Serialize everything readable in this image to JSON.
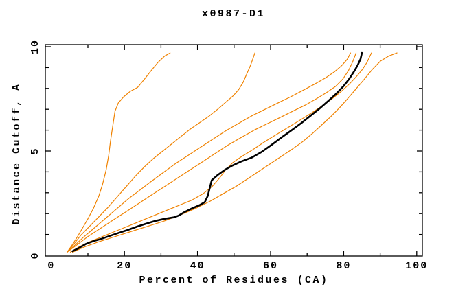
{
  "window": {
    "background": "#ffffff"
  },
  "chart_data": {
    "type": "line",
    "title": "x0987-D1",
    "xlabel": "Percent of Residues (CA)",
    "ylabel": "Distance Cutoff, A",
    "xlim": [
      -1.7,
      101.6
    ],
    "ylim": [
      -0.05,
      10.15
    ],
    "grid": false,
    "legend": "none",
    "colors": {
      "model_line": "#000000",
      "reference_lines": "#f08200"
    },
    "x_axis": {
      "ticks": [
        {
          "v": 0,
          "label": "0",
          "mark": false
        },
        {
          "v": 10
        },
        {
          "v": 20,
          "label": "20",
          "major": true
        },
        {
          "v": 30
        },
        {
          "v": 40,
          "label": "40",
          "major": true
        },
        {
          "v": 50
        },
        {
          "v": 60,
          "label": "60",
          "major": true
        },
        {
          "v": 70
        },
        {
          "v": 80,
          "label": "80",
          "major": true
        },
        {
          "v": 90
        },
        {
          "v": 100,
          "label": "100",
          "major": true
        }
      ]
    },
    "y_axis": {
      "ticks": [
        {
          "v": 0,
          "label": "0",
          "mark": false
        },
        {
          "v": 1
        },
        {
          "v": 2
        },
        {
          "v": 3
        },
        {
          "v": 4
        },
        {
          "v": 5,
          "label": "5",
          "major": true
        },
        {
          "v": 6
        },
        {
          "v": 7
        },
        {
          "v": 8
        },
        {
          "v": 9
        },
        {
          "v": 10,
          "label": "10",
          "major": true
        }
      ]
    },
    "series": [
      {
        "name": "orange-1-steep",
        "color": "#f08200",
        "width": 1.2,
        "points": [
          [
            4.3,
            0.15
          ],
          [
            5.5,
            0.45
          ],
          [
            7,
            0.85
          ],
          [
            8.5,
            1.3
          ],
          [
            10,
            1.75
          ],
          [
            11.5,
            2.25
          ],
          [
            13,
            2.85
          ],
          [
            14,
            3.4
          ],
          [
            15,
            4.1
          ],
          [
            15.7,
            4.8
          ],
          [
            16.2,
            5.5
          ],
          [
            16.8,
            6.2
          ],
          [
            17.4,
            6.9
          ],
          [
            18.3,
            7.3
          ],
          [
            19.8,
            7.6
          ],
          [
            21.5,
            7.85
          ],
          [
            23.6,
            8.05
          ],
          [
            25.5,
            8.45
          ],
          [
            27.3,
            8.85
          ],
          [
            29.2,
            9.25
          ],
          [
            31,
            9.55
          ],
          [
            32.5,
            9.7
          ]
        ]
      },
      {
        "name": "orange-2",
        "color": "#f08200",
        "width": 1.2,
        "points": [
          [
            4.3,
            0.15
          ],
          [
            6,
            0.5
          ],
          [
            8,
            0.95
          ],
          [
            10.5,
            1.4
          ],
          [
            13,
            1.85
          ],
          [
            15.5,
            2.3
          ],
          [
            18,
            2.8
          ],
          [
            20.5,
            3.3
          ],
          [
            23,
            3.8
          ],
          [
            25.5,
            4.25
          ],
          [
            28,
            4.65
          ],
          [
            30.5,
            5.0
          ],
          [
            33,
            5.35
          ],
          [
            35.5,
            5.7
          ],
          [
            38,
            6.05
          ],
          [
            40.5,
            6.35
          ],
          [
            43,
            6.65
          ],
          [
            45.5,
            7.0
          ],
          [
            47.8,
            7.35
          ],
          [
            49.8,
            7.65
          ],
          [
            51.3,
            7.95
          ],
          [
            52.5,
            8.3
          ],
          [
            53.5,
            8.7
          ],
          [
            54.5,
            9.1
          ],
          [
            55.2,
            9.45
          ],
          [
            55.7,
            9.7
          ]
        ]
      },
      {
        "name": "orange-3",
        "color": "#f08200",
        "width": 1.2,
        "points": [
          [
            4.3,
            0.15
          ],
          [
            6.5,
            0.5
          ],
          [
            9,
            0.9
          ],
          [
            12,
            1.35
          ],
          [
            15,
            1.8
          ],
          [
            18,
            2.25
          ],
          [
            21,
            2.7
          ],
          [
            24,
            3.1
          ],
          [
            27,
            3.5
          ],
          [
            30.5,
            3.95
          ],
          [
            34,
            4.4
          ],
          [
            37.5,
            4.8
          ],
          [
            41,
            5.2
          ],
          [
            44.5,
            5.6
          ],
          [
            48,
            6.0
          ],
          [
            51.5,
            6.35
          ],
          [
            55,
            6.7
          ],
          [
            58.5,
            7.0
          ],
          [
            62,
            7.3
          ],
          [
            65.5,
            7.6
          ],
          [
            68.8,
            7.9
          ],
          [
            72,
            8.2
          ],
          [
            75,
            8.5
          ],
          [
            77.5,
            8.8
          ],
          [
            79.5,
            9.1
          ],
          [
            81,
            9.4
          ],
          [
            81.9,
            9.7
          ]
        ]
      },
      {
        "name": "orange-4-crosses-black",
        "color": "#f08200",
        "width": 1.2,
        "points": [
          [
            4.3,
            0.15
          ],
          [
            7,
            0.5
          ],
          [
            10,
            0.9
          ],
          [
            13.5,
            1.3
          ],
          [
            17,
            1.7
          ],
          [
            20.5,
            2.1
          ],
          [
            24,
            2.5
          ],
          [
            27.5,
            2.9
          ],
          [
            31,
            3.3
          ],
          [
            34.5,
            3.7
          ],
          [
            38,
            4.1
          ],
          [
            41.5,
            4.5
          ],
          [
            45,
            4.9
          ],
          [
            48.5,
            5.3
          ],
          [
            52,
            5.65
          ],
          [
            55.5,
            6.0
          ],
          [
            59,
            6.3
          ],
          [
            62.5,
            6.6
          ],
          [
            66,
            6.9
          ],
          [
            69.5,
            7.2
          ],
          [
            72.5,
            7.5
          ],
          [
            75.3,
            7.8
          ],
          [
            77.8,
            8.1
          ],
          [
            79.8,
            8.45
          ],
          [
            81.3,
            8.85
          ],
          [
            82.4,
            9.25
          ],
          [
            83.4,
            9.7
          ]
        ]
      },
      {
        "name": "orange-5-hugs-black",
        "color": "#f08200",
        "width": 1.2,
        "points": [
          [
            5.2,
            0.15
          ],
          [
            7.5,
            0.4
          ],
          [
            10.5,
            0.65
          ],
          [
            14,
            0.9
          ],
          [
            17.5,
            1.15
          ],
          [
            21,
            1.4
          ],
          [
            24.5,
            1.65
          ],
          [
            28,
            1.9
          ],
          [
            31.5,
            2.15
          ],
          [
            35,
            2.4
          ],
          [
            38.5,
            2.65
          ],
          [
            41.5,
            2.95
          ],
          [
            44,
            3.3
          ],
          [
            46,
            3.7
          ],
          [
            47.7,
            4.1
          ],
          [
            49.7,
            4.45
          ],
          [
            52.2,
            4.75
          ],
          [
            55,
            5.05
          ],
          [
            58,
            5.4
          ],
          [
            61.2,
            5.75
          ],
          [
            64.5,
            6.1
          ],
          [
            67.8,
            6.45
          ],
          [
            71,
            6.8
          ],
          [
            74,
            7.15
          ],
          [
            76.8,
            7.5
          ],
          [
            79.3,
            7.85
          ],
          [
            81.5,
            8.2
          ],
          [
            83.4,
            8.55
          ],
          [
            85.1,
            8.9
          ],
          [
            86.4,
            9.25
          ],
          [
            87.6,
            9.7
          ]
        ]
      },
      {
        "name": "orange-6-shallow-right",
        "color": "#f08200",
        "width": 1.2,
        "points": [
          [
            5.8,
            0.15
          ],
          [
            9,
            0.4
          ],
          [
            13,
            0.65
          ],
          [
            17.5,
            0.9
          ],
          [
            22,
            1.15
          ],
          [
            26.5,
            1.4
          ],
          [
            31,
            1.65
          ],
          [
            35.5,
            1.95
          ],
          [
            39.5,
            2.25
          ],
          [
            43.5,
            2.6
          ],
          [
            47,
            2.95
          ],
          [
            50.5,
            3.3
          ],
          [
            54,
            3.7
          ],
          [
            57,
            4.05
          ],
          [
            60,
            4.4
          ],
          [
            63,
            4.75
          ],
          [
            66,
            5.1
          ],
          [
            68.8,
            5.45
          ],
          [
            71.5,
            5.85
          ],
          [
            74,
            6.25
          ],
          [
            76.5,
            6.65
          ],
          [
            79,
            7.1
          ],
          [
            81.3,
            7.55
          ],
          [
            83.5,
            8.0
          ],
          [
            85.7,
            8.45
          ],
          [
            87.8,
            8.9
          ],
          [
            90,
            9.3
          ],
          [
            92.3,
            9.55
          ],
          [
            94.6,
            9.7
          ]
        ]
      },
      {
        "name": "black-model",
        "color": "#000000",
        "width": 2.6,
        "points": [
          [
            5.8,
            0.2
          ],
          [
            7.5,
            0.35
          ],
          [
            9.5,
            0.55
          ],
          [
            11.5,
            0.68
          ],
          [
            13.5,
            0.78
          ],
          [
            16,
            0.93
          ],
          [
            18.5,
            1.08
          ],
          [
            21,
            1.22
          ],
          [
            23.5,
            1.38
          ],
          [
            26,
            1.52
          ],
          [
            28.5,
            1.65
          ],
          [
            31,
            1.75
          ],
          [
            33.5,
            1.82
          ],
          [
            34.8,
            1.9
          ],
          [
            36.5,
            2.08
          ],
          [
            38.5,
            2.25
          ],
          [
            40.5,
            2.4
          ],
          [
            42,
            2.55
          ],
          [
            42.8,
            2.85
          ],
          [
            43.3,
            3.2
          ],
          [
            43.9,
            3.6
          ],
          [
            45.5,
            3.85
          ],
          [
            47.5,
            4.1
          ],
          [
            49.5,
            4.3
          ],
          [
            52,
            4.5
          ],
          [
            54.8,
            4.68
          ],
          [
            57.5,
            4.95
          ],
          [
            60.3,
            5.3
          ],
          [
            63,
            5.65
          ],
          [
            65.8,
            6.0
          ],
          [
            68.5,
            6.35
          ],
          [
            71,
            6.7
          ],
          [
            73.5,
            7.05
          ],
          [
            75.8,
            7.4
          ],
          [
            78,
            7.75
          ],
          [
            79.9,
            8.1
          ],
          [
            81.5,
            8.45
          ],
          [
            82.8,
            8.8
          ],
          [
            83.8,
            9.1
          ],
          [
            84.6,
            9.4
          ],
          [
            85,
            9.7
          ]
        ]
      }
    ]
  }
}
